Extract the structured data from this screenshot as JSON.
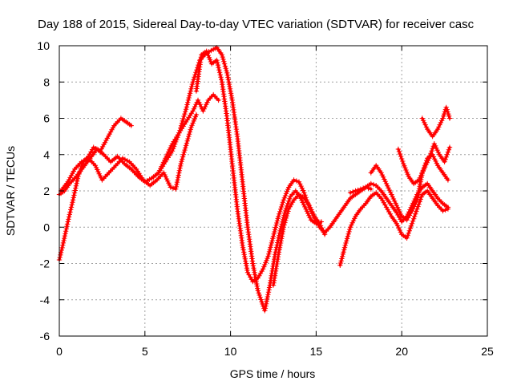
{
  "chart_data": {
    "type": "scatter",
    "title": "Day 188 of 2015, Sidereal Day-to-day VTEC variation (SDTVAR) for receiver casc",
    "xlabel": "GPS time / hours",
    "ylabel": "SDTVAR / TECUs",
    "xlim": [
      0,
      25
    ],
    "ylim": [
      -6,
      10
    ],
    "xticks": [
      0,
      5,
      10,
      15,
      20,
      25
    ],
    "yticks": [
      -6,
      -4,
      -2,
      0,
      2,
      4,
      6,
      8,
      10
    ],
    "grid": true,
    "legend": "none",
    "marker": "plus",
    "color": "#ff0000",
    "series": [
      {
        "x": [
          0.0,
          0.3,
          0.6,
          1.0,
          1.4,
          1.8,
          2.2,
          2.6,
          3.0,
          3.4,
          3.8,
          4.2,
          4.6,
          5.0,
          5.4,
          5.8,
          6.2,
          6.6,
          7.0,
          7.4,
          7.8,
          8.2,
          8.6,
          9.0,
          9.2,
          9.5,
          9.8,
          10.1,
          10.4,
          10.7,
          11.0,
          11.3,
          11.6,
          12.0,
          12.3,
          12.6,
          12.9,
          13.2,
          13.5,
          13.8,
          14.1,
          14.4,
          14.7,
          15.0,
          15.3
        ],
        "y": [
          1.8,
          2.0,
          2.4,
          2.8,
          3.3,
          3.8,
          4.3,
          4.0,
          3.6,
          3.9,
          3.5,
          3.2,
          2.8,
          2.5,
          2.7,
          3.0,
          3.6,
          4.2,
          5.2,
          6.5,
          8.0,
          9.2,
          9.6,
          9.8,
          9.9,
          9.5,
          8.5,
          7.0,
          5.0,
          2.5,
          0.0,
          -2.0,
          -3.5,
          -4.6,
          -3.2,
          -1.5,
          -0.2,
          0.9,
          1.7,
          2.0,
          1.6,
          1.0,
          0.4,
          0.2,
          0.3
        ]
      },
      {
        "x": [
          0.0,
          0.2,
          0.5,
          0.8,
          1.1,
          1.4,
          1.7,
          2.0,
          2.4,
          2.8,
          3.2,
          3.6,
          3.9,
          4.2
        ],
        "y": [
          -1.8,
          -1.0,
          0.3,
          1.5,
          2.8,
          3.6,
          3.9,
          4.4,
          4.2,
          4.9,
          5.6,
          6.0,
          5.8,
          5.6
        ]
      },
      {
        "x": [
          0.1,
          0.5,
          0.9,
          1.3,
          1.7,
          2.1,
          2.5,
          2.9,
          3.3,
          3.7,
          4.1,
          4.5,
          4.9,
          5.3,
          5.7,
          6.1,
          6.5,
          6.8,
          7.1,
          7.4,
          7.7,
          8.0
        ],
        "y": [
          2.0,
          2.5,
          3.2,
          3.6,
          3.8,
          3.4,
          2.6,
          3.0,
          3.4,
          3.8,
          3.6,
          3.2,
          2.6,
          2.3,
          2.6,
          3.0,
          2.2,
          2.1,
          3.5,
          4.5,
          5.5,
          6.2
        ]
      },
      {
        "x": [
          5.8,
          6.2,
          6.6,
          7.0,
          7.4,
          7.8,
          8.1,
          8.4,
          8.7,
          9.0,
          9.3
        ],
        "y": [
          3.0,
          3.8,
          4.6,
          5.2,
          5.8,
          6.4,
          7.0,
          6.4,
          7.0,
          7.3,
          7.0
        ]
      },
      {
        "x": [
          8.0,
          8.3,
          8.6,
          8.9,
          9.2,
          9.5,
          9.8,
          10.1,
          10.4,
          10.7,
          11.0,
          11.3,
          11.6,
          11.9,
          12.2,
          12.5,
          12.8,
          13.1,
          13.4,
          13.7,
          14.0,
          14.3,
          14.6,
          14.9,
          15.2,
          15.5,
          15.8,
          16.1,
          16.4,
          16.7,
          17.0,
          17.3,
          17.6,
          17.9,
          18.2
        ],
        "y": [
          7.5,
          9.5,
          9.7,
          9.0,
          9.2,
          8.0,
          6.0,
          3.5,
          1.0,
          -1.0,
          -2.5,
          -3.0,
          -2.8,
          -2.3,
          -1.6,
          -0.5,
          0.6,
          1.5,
          2.2,
          2.6,
          2.5,
          1.9,
          1.1,
          0.5,
          0.0,
          -0.3,
          0.0,
          0.4,
          0.8,
          1.2,
          1.6,
          1.8,
          2.0,
          2.2,
          2.1
        ]
      },
      {
        "x": [
          12.5,
          12.8,
          13.1,
          13.4,
          13.7,
          14.0,
          14.3,
          14.6,
          14.9,
          15.2,
          15.5
        ],
        "y": [
          -3.2,
          -1.5,
          0.0,
          1.0,
          1.5,
          1.8,
          1.6,
          1.2,
          0.6,
          0.2,
          -0.4
        ]
      },
      {
        "x": [
          16.4,
          16.7,
          17.0,
          17.3,
          17.6,
          17.9,
          18.2,
          18.5,
          18.8,
          19.1,
          19.4,
          19.7,
          20.0,
          20.3,
          20.6,
          20.9,
          21.2,
          21.5,
          21.8,
          22.1,
          22.4,
          22.7
        ],
        "y": [
          -2.1,
          -1.0,
          0.0,
          0.6,
          1.0,
          1.3,
          1.7,
          1.9,
          1.6,
          1.1,
          0.6,
          0.2,
          -0.4,
          -0.6,
          0.2,
          1.0,
          1.8,
          2.0,
          1.6,
          1.2,
          0.9,
          1.0
        ]
      },
      {
        "x": [
          17.0,
          17.3,
          17.6,
          17.9,
          18.2,
          18.5,
          18.8,
          19.1,
          19.4,
          19.7,
          20.0,
          20.3,
          20.6,
          20.9,
          21.2,
          21.5,
          21.8,
          22.1,
          22.4,
          22.7
        ],
        "y": [
          1.9,
          2.0,
          2.1,
          2.2,
          2.4,
          2.3,
          2.0,
          1.6,
          1.2,
          0.8,
          0.3,
          0.6,
          1.2,
          1.8,
          2.2,
          2.4,
          2.0,
          1.6,
          1.3,
          1.1
        ]
      },
      {
        "x": [
          18.2,
          18.5,
          18.8,
          19.1,
          19.4,
          19.7,
          20.0,
          20.3,
          20.6,
          20.9,
          21.2,
          21.5,
          21.8,
          22.1,
          22.4,
          22.7
        ],
        "y": [
          3.0,
          3.4,
          3.0,
          2.4,
          1.8,
          1.2,
          0.6,
          0.4,
          0.9,
          1.5,
          3.0,
          3.8,
          4.0,
          3.4,
          3.0,
          2.6
        ]
      },
      {
        "x": [
          19.8,
          20.1,
          20.4,
          20.7,
          21.0,
          21.3,
          21.6,
          21.9,
          22.2,
          22.5,
          22.8
        ],
        "y": [
          4.3,
          3.5,
          2.8,
          2.4,
          2.6,
          3.2,
          3.8,
          4.6,
          4.0,
          3.6,
          4.4
        ]
      },
      {
        "x": [
          21.2,
          21.5,
          21.8,
          22.1,
          22.4,
          22.6,
          22.8
        ],
        "y": [
          6.0,
          5.4,
          5.0,
          5.4,
          6.0,
          6.6,
          6.0
        ]
      }
    ]
  }
}
